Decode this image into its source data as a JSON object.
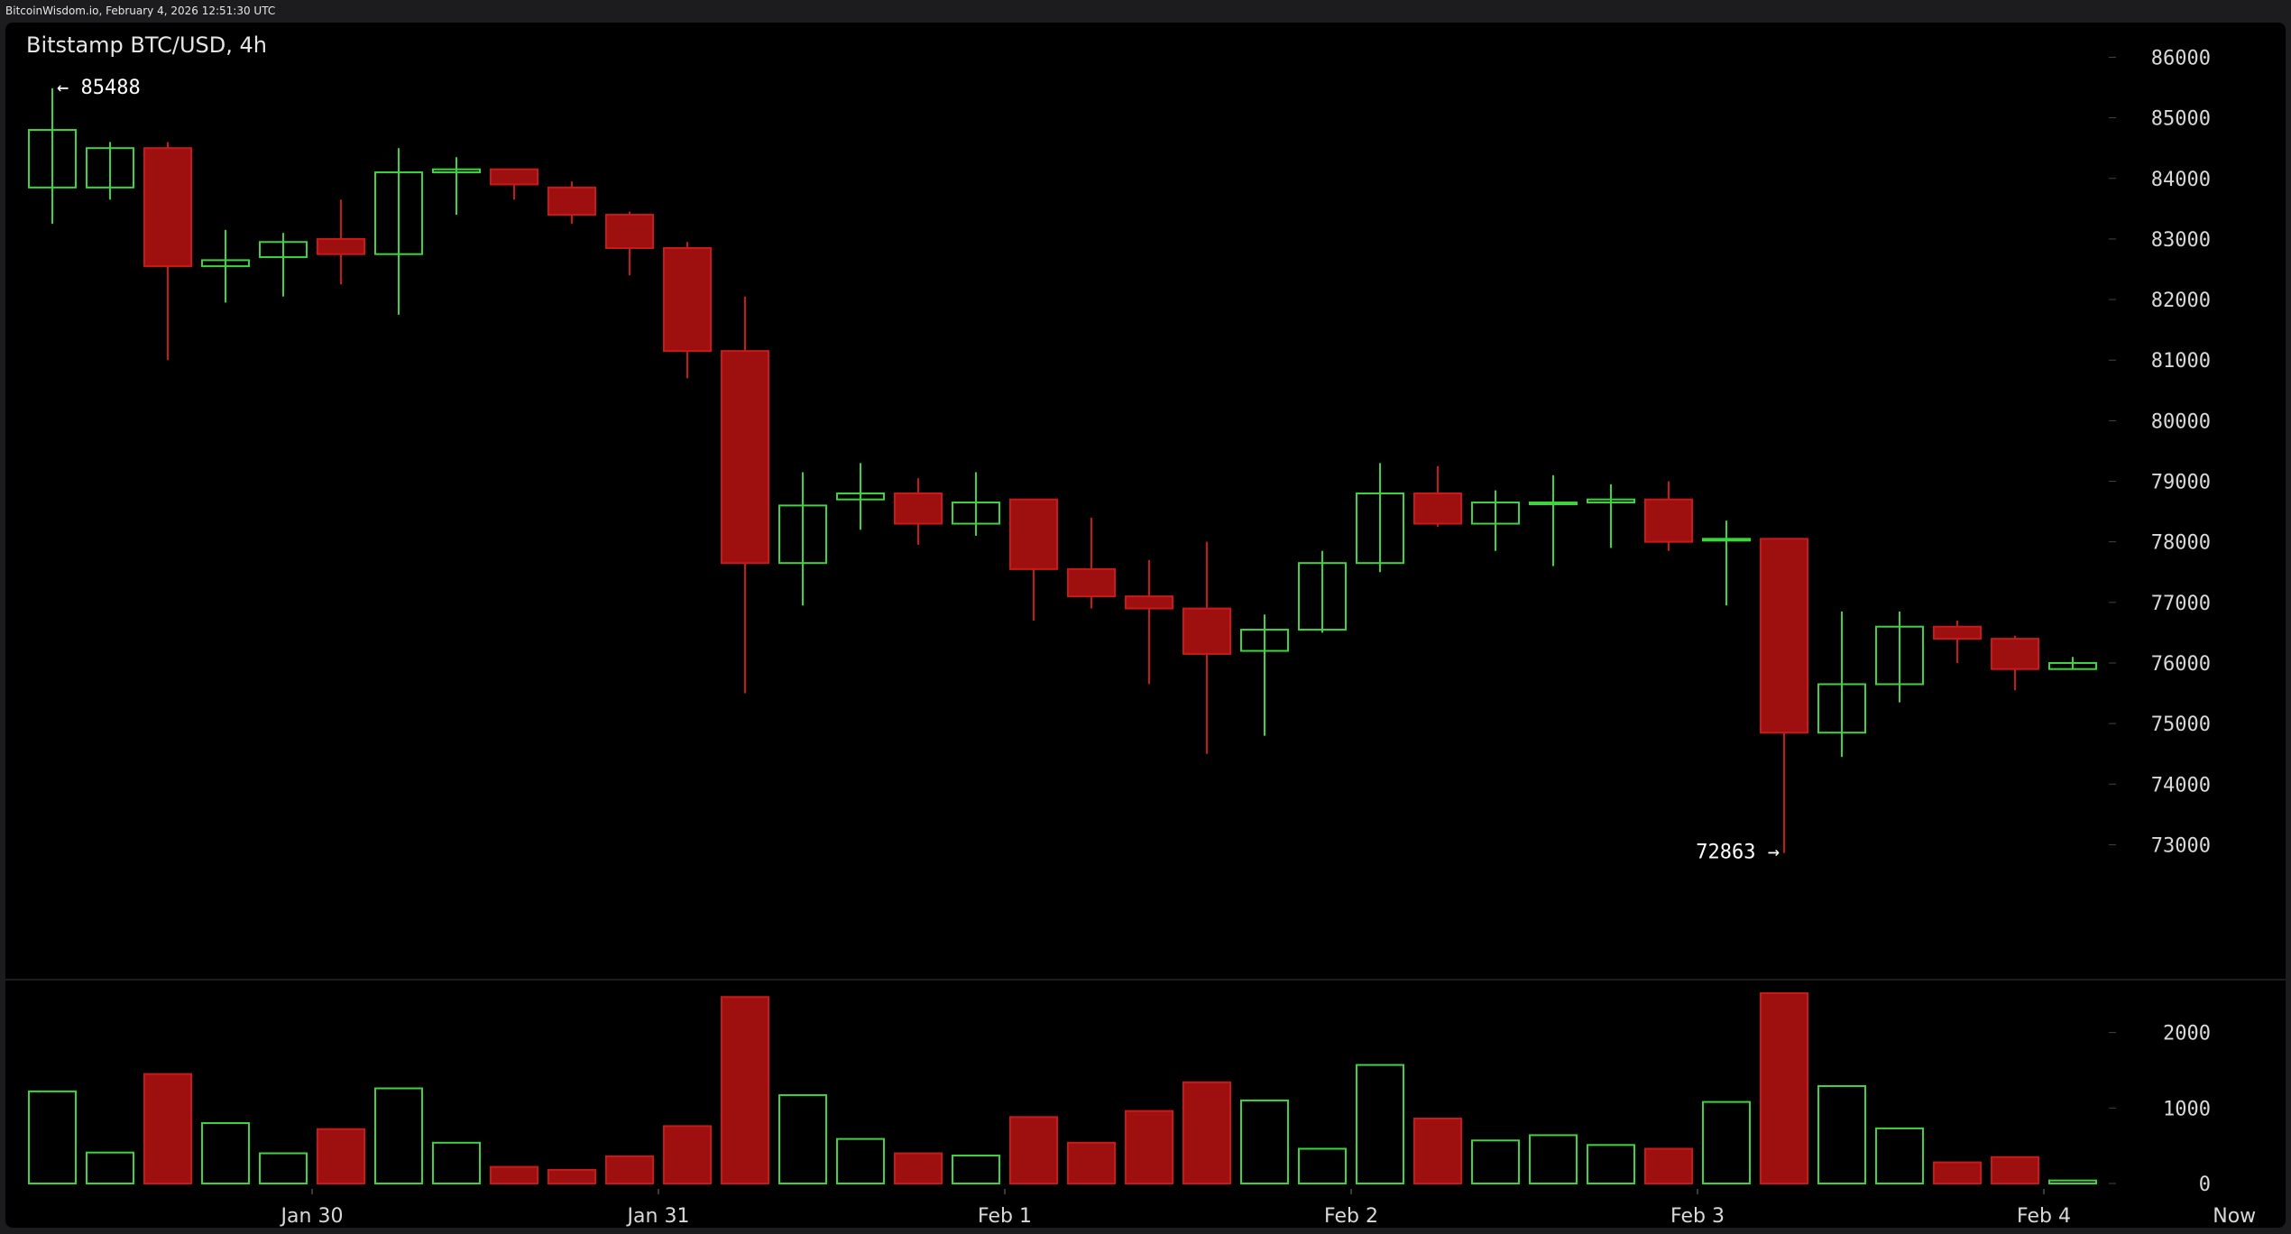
{
  "header": {
    "source": "BitcoinWisdom.io, February 4, 2026 12:51:30 UTC"
  },
  "colors": {
    "up": "#3fd43f",
    "down": "#9e1010",
    "down_stroke": "#c81a1a",
    "background": "#000000",
    "text": "#d9d9d9"
  },
  "chart_data": {
    "type": "candlestick",
    "title": "Bitstamp BTC/USD, 4h",
    "price_axis": {
      "ticks": [
        73000,
        74000,
        75000,
        76000,
        77000,
        78000,
        79000,
        80000,
        81000,
        82000,
        83000,
        84000,
        85000,
        86000
      ],
      "range": [
        72000,
        86400
      ]
    },
    "volume_axis": {
      "ticks": [
        0,
        1000,
        2000
      ],
      "range": [
        0,
        2550
      ]
    },
    "x_labels": [
      {
        "label": "Jan 30",
        "index": 4.5
      },
      {
        "label": "Jan 31",
        "index": 10.5
      },
      {
        "label": "Feb 1",
        "index": 16.5
      },
      {
        "label": "Feb 2",
        "index": 22.5
      },
      {
        "label": "Feb 3",
        "index": 28.5
      },
      {
        "label": "Feb 4",
        "index": 34.5
      },
      {
        "label": "Now",
        "index": 37.8
      }
    ],
    "annotations": [
      {
        "text": "← 85488",
        "index": 0,
        "price": 85488,
        "side": "right"
      },
      {
        "text": "72863 →",
        "index": 30,
        "price": 72863,
        "side": "left"
      }
    ],
    "candles": [
      {
        "o": 83850,
        "h": 85488,
        "l": 83250,
        "c": 84800,
        "v": 1220
      },
      {
        "o": 83850,
        "h": 84600,
        "l": 83650,
        "c": 84500,
        "v": 410
      },
      {
        "o": 84500,
        "h": 84600,
        "l": 81000,
        "c": 82550,
        "v": 1450
      },
      {
        "o": 82550,
        "h": 83150,
        "l": 81950,
        "c": 82650,
        "v": 800
      },
      {
        "o": 82700,
        "h": 83100,
        "l": 82050,
        "c": 82950,
        "v": 400
      },
      {
        "o": 83000,
        "h": 83650,
        "l": 82250,
        "c": 82750,
        "v": 720
      },
      {
        "o": 82750,
        "h": 84500,
        "l": 81750,
        "c": 84100,
        "v": 1260
      },
      {
        "o": 84100,
        "h": 84350,
        "l": 83400,
        "c": 84150,
        "v": 540
      },
      {
        "o": 84150,
        "h": 84150,
        "l": 83650,
        "c": 83900,
        "v": 220
      },
      {
        "o": 83850,
        "h": 83950,
        "l": 83250,
        "c": 83400,
        "v": 180
      },
      {
        "o": 83400,
        "h": 83450,
        "l": 82400,
        "c": 82850,
        "v": 360
      },
      {
        "o": 82850,
        "h": 82950,
        "l": 80700,
        "c": 81150,
        "v": 760
      },
      {
        "o": 81150,
        "h": 82050,
        "l": 75500,
        "c": 77650,
        "v": 2470
      },
      {
        "o": 77650,
        "h": 79150,
        "l": 76950,
        "c": 78600,
        "v": 1170
      },
      {
        "o": 78700,
        "h": 79300,
        "l": 78200,
        "c": 78800,
        "v": 590
      },
      {
        "o": 78800,
        "h": 79050,
        "l": 77950,
        "c": 78300,
        "v": 400
      },
      {
        "o": 78300,
        "h": 79150,
        "l": 78100,
        "c": 78650,
        "v": 370
      },
      {
        "o": 78700,
        "h": 78700,
        "l": 76700,
        "c": 77550,
        "v": 880
      },
      {
        "o": 77550,
        "h": 78400,
        "l": 76900,
        "c": 77100,
        "v": 540
      },
      {
        "o": 77100,
        "h": 77700,
        "l": 75650,
        "c": 76900,
        "v": 960
      },
      {
        "o": 76900,
        "h": 78000,
        "l": 74500,
        "c": 76150,
        "v": 1340
      },
      {
        "o": 76200,
        "h": 76800,
        "l": 74800,
        "c": 76550,
        "v": 1100
      },
      {
        "o": 76550,
        "h": 77850,
        "l": 76500,
        "c": 77650,
        "v": 460
      },
      {
        "o": 77650,
        "h": 79300,
        "l": 77500,
        "c": 78800,
        "v": 1570
      },
      {
        "o": 78800,
        "h": 79250,
        "l": 78250,
        "c": 78300,
        "v": 860
      },
      {
        "o": 78300,
        "h": 78850,
        "l": 77850,
        "c": 78650,
        "v": 570
      },
      {
        "o": 78650,
        "h": 79100,
        "l": 77600,
        "c": 78650,
        "v": 640
      },
      {
        "o": 78650,
        "h": 78950,
        "l": 77900,
        "c": 78700,
        "v": 510
      },
      {
        "o": 78700,
        "h": 79000,
        "l": 77850,
        "c": 78000,
        "v": 460
      },
      {
        "o": 78050,
        "h": 78350,
        "l": 76950,
        "c": 78050,
        "v": 1080
      },
      {
        "o": 78050,
        "h": 78050,
        "l": 72863,
        "c": 74850,
        "v": 2520
      },
      {
        "o": 74850,
        "h": 76850,
        "l": 74450,
        "c": 75650,
        "v": 1290
      },
      {
        "o": 75650,
        "h": 76850,
        "l": 75350,
        "c": 76600,
        "v": 730
      },
      {
        "o": 76600,
        "h": 76700,
        "l": 76000,
        "c": 76400,
        "v": 280
      },
      {
        "o": 76400,
        "h": 76450,
        "l": 75550,
        "c": 75900,
        "v": 350
      },
      {
        "o": 75900,
        "h": 76100,
        "l": 75900,
        "c": 76000,
        "v": 40
      }
    ]
  }
}
